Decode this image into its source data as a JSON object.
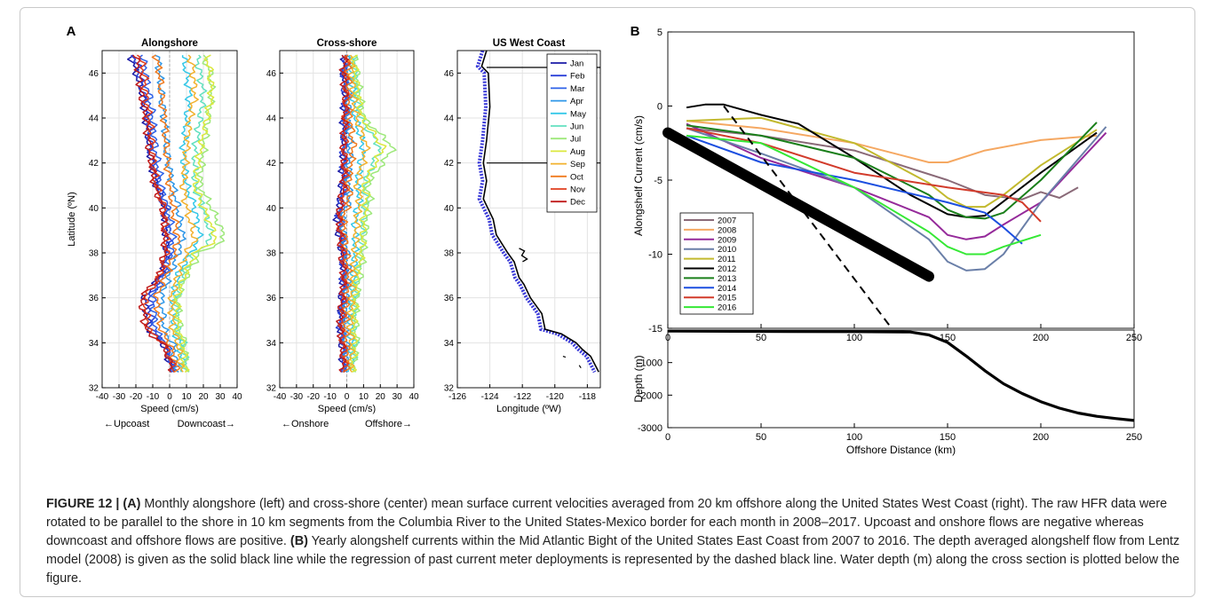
{
  "panel_a": {
    "letter": "A",
    "alongshore": {
      "title": "Alongshore",
      "xlabel": "Speed (cm/s)",
      "ylabel": "Latitude (ºN)",
      "left_note": "←Upcoast",
      "right_note": "Downcoast→",
      "xticks": [
        "-40",
        "-30",
        "-20",
        "-10",
        "0",
        "10",
        "20",
        "30",
        "40"
      ],
      "yticks": [
        "32",
        "34",
        "36",
        "38",
        "40",
        "42",
        "44",
        "46"
      ]
    },
    "crossshore": {
      "title": "Cross-shore",
      "xlabel": "Speed (cm/s)",
      "left_note": "←Onshore",
      "right_note": "Offshore→",
      "xticks": [
        "-40",
        "-30",
        "-20",
        "-10",
        "0",
        "10",
        "20",
        "30",
        "40"
      ],
      "yticks": [
        "32",
        "34",
        "36",
        "38",
        "40",
        "42",
        "44",
        "46"
      ]
    },
    "map": {
      "title": "US West Coast",
      "xlabel": "Longitude (ºW)",
      "xticks": [
        "-126",
        "-124",
        "-122",
        "-120",
        "-118"
      ],
      "yticks": [
        "32",
        "34",
        "36",
        "38",
        "40",
        "42",
        "44",
        "46"
      ]
    },
    "months": [
      "Jan",
      "Feb",
      "Mar",
      "Apr",
      "May",
      "Jun",
      "Jul",
      "Aug",
      "Sep",
      "Oct",
      "Nov",
      "Dec"
    ],
    "month_colors": [
      "#1a1aa6",
      "#2b40d8",
      "#2f62e8",
      "#2f97e8",
      "#35c8e8",
      "#63e0c0",
      "#9de87a",
      "#dbe83e",
      "#f2b12e",
      "#f07a1e",
      "#e03e1e",
      "#c01a1a"
    ]
  },
  "panel_b": {
    "letter": "B",
    "top_ylabel": "Alongshelf Current (cm/s)",
    "top_yticks": [
      "5",
      "0",
      "-5",
      "-10",
      "-15"
    ],
    "bottom_ylabel": "Depth (m)",
    "bottom_yticks": [
      "-1000",
      "-2000",
      "-3000"
    ],
    "xticks": [
      "0",
      "50",
      "100",
      "150",
      "200",
      "250"
    ],
    "xlabel": "Offshore Distance (km)"
  },
  "caption": {
    "fig_label": "FIGURE 12 |",
    "a_label": "(A)",
    "a_text": " Monthly alongshore (left) and cross-shore (center) mean surface current velocities averaged from 20 km offshore along the United States West Coast (right). The raw HFR data were rotated to be parallel to the shore in 10 km segments from the Columbia River to the United States-Mexico border for each month in 2008–2017. Upcoast and onshore flows are negative whereas downcoast and offshore flows are positive. ",
    "b_label": "(B)",
    "b_text": " Yearly alongshelf currents within the Mid Atlantic Bight of the United States East Coast from 2007 to 2016. The depth averaged alongshelf flow from Lentz model (2008) is given as the solid black line while the regression of past current meter deployments is represented by the dashed black line. Water depth (m) along the cross section is plotted below the figure."
  },
  "chart_data": [
    {
      "type": "line",
      "title": "Alongshore",
      "xlabel": "Speed (cm/s)",
      "ylabel": "Latitude (ºN)",
      "xlim": [
        -40,
        40
      ],
      "ylim": [
        32,
        47
      ],
      "note": "12 monthly profiles of mean alongshore speed vs latitude",
      "lat": [
        32.7,
        34,
        34.5,
        36,
        37,
        38,
        38.6,
        40,
        41,
        42.5,
        44,
        45,
        46,
        46.8
      ],
      "series": [
        {
          "name": "Jan",
          "values": [
            2,
            -4,
            -12,
            -15,
            -5,
            -2,
            -2,
            -3,
            -8,
            -12,
            -14,
            -16,
            -20,
            -23
          ]
        },
        {
          "name": "Feb",
          "values": [
            2,
            -3,
            -10,
            -12,
            -4,
            -1,
            -1,
            -3,
            -7,
            -11,
            -13,
            -15,
            -18,
            -21
          ]
        },
        {
          "name": "Mar",
          "values": [
            3,
            -2,
            -8,
            -10,
            -3,
            1,
            2,
            -1,
            -5,
            -8,
            -10,
            -12,
            -14,
            -16
          ]
        },
        {
          "name": "Apr",
          "values": [
            5,
            2,
            -3,
            -5,
            0,
            5,
            8,
            5,
            2,
            -2,
            -3,
            -5,
            -6,
            -7
          ]
        },
        {
          "name": "May",
          "values": [
            8,
            6,
            3,
            2,
            5,
            12,
            18,
            15,
            10,
            8,
            10,
            12,
            10,
            8
          ]
        },
        {
          "name": "Jun",
          "values": [
            10,
            8,
            5,
            4,
            8,
            15,
            25,
            20,
            15,
            15,
            18,
            20,
            18,
            16
          ]
        },
        {
          "name": "Jul",
          "values": [
            10,
            9,
            6,
            5,
            10,
            18,
            33,
            25,
            18,
            20,
            23,
            25,
            24,
            20
          ]
        },
        {
          "name": "Aug",
          "values": [
            9,
            8,
            5,
            4,
            9,
            15,
            28,
            20,
            15,
            18,
            22,
            25,
            24,
            22
          ]
        },
        {
          "name": "Sep",
          "values": [
            7,
            5,
            2,
            1,
            5,
            10,
            15,
            10,
            8,
            10,
            12,
            15,
            14,
            12
          ]
        },
        {
          "name": "Oct",
          "values": [
            5,
            0,
            -5,
            -8,
            -2,
            3,
            5,
            2,
            0,
            -2,
            -3,
            -5,
            -6,
            -8
          ]
        },
        {
          "name": "Nov",
          "values": [
            3,
            -3,
            -12,
            -15,
            -5,
            -2,
            -2,
            -3,
            -8,
            -10,
            -12,
            -14,
            -15,
            -18
          ]
        },
        {
          "name": "Dec",
          "values": [
            2,
            -4,
            -14,
            -17,
            -6,
            -3,
            -3,
            -4,
            -9,
            -12,
            -14,
            -17,
            -18,
            -20
          ]
        }
      ]
    },
    {
      "type": "line",
      "title": "Cross-shore",
      "xlabel": "Speed (cm/s)",
      "xlim": [
        -40,
        40
      ],
      "ylim": [
        32,
        47
      ],
      "note": "12 monthly profiles of mean cross-shore speed vs latitude",
      "lat": [
        32.7,
        34,
        34.5,
        36,
        37,
        38,
        39.5,
        40.5,
        41,
        42.7,
        44,
        45,
        46,
        46.8
      ],
      "series": [
        {
          "name": "Jan",
          "values": [
            -2,
            -3,
            -4,
            -3,
            -2,
            -3,
            -6,
            -4,
            -3,
            -2,
            -2,
            -1,
            -2,
            -1
          ]
        },
        {
          "name": "Feb",
          "values": [
            -2,
            -2,
            -4,
            -3,
            -2,
            -2,
            -5,
            -3,
            -2,
            -2,
            -1,
            -1,
            -2,
            -1
          ]
        },
        {
          "name": "Mar",
          "values": [
            -1,
            -2,
            -3,
            -2,
            -1,
            -2,
            -4,
            -2,
            -1,
            -1,
            -1,
            0,
            -1,
            0
          ]
        },
        {
          "name": "Apr",
          "values": [
            0,
            0,
            -1,
            0,
            1,
            0,
            -3,
            2,
            1,
            2,
            1,
            1,
            0,
            1
          ]
        },
        {
          "name": "May",
          "values": [
            2,
            3,
            2,
            3,
            4,
            5,
            5,
            8,
            6,
            10,
            5,
            4,
            3,
            2
          ]
        },
        {
          "name": "Jun",
          "values": [
            3,
            5,
            4,
            5,
            6,
            8,
            10,
            12,
            10,
            20,
            8,
            6,
            5,
            4
          ]
        },
        {
          "name": "Jul",
          "values": [
            4,
            6,
            5,
            6,
            8,
            10,
            12,
            14,
            12,
            28,
            10,
            8,
            6,
            5
          ]
        },
        {
          "name": "Aug",
          "values": [
            3,
            5,
            4,
            5,
            6,
            9,
            10,
            12,
            10,
            22,
            9,
            7,
            5,
            4
          ]
        },
        {
          "name": "Sep",
          "values": [
            2,
            3,
            2,
            3,
            4,
            5,
            6,
            8,
            6,
            12,
            6,
            4,
            3,
            3
          ]
        },
        {
          "name": "Oct",
          "values": [
            0,
            0,
            -1,
            0,
            1,
            0,
            -2,
            2,
            1,
            4,
            2,
            1,
            1,
            1
          ]
        },
        {
          "name": "Nov",
          "values": [
            -1,
            -2,
            -3,
            -2,
            -1,
            -2,
            -4,
            -2,
            -1,
            -1,
            -1,
            0,
            -1,
            0
          ]
        },
        {
          "name": "Dec",
          "values": [
            -2,
            -3,
            -4,
            -3,
            -2,
            -3,
            -5,
            -3,
            -2,
            -2,
            -1,
            -1,
            -2,
            -1
          ]
        }
      ]
    },
    {
      "type": "map",
      "title": "US West Coast",
      "xlabel": "Longitude (ºW)",
      "xlim": [
        -126,
        -117.2
      ],
      "ylim": [
        32,
        47
      ],
      "coastline": [
        [
          -124.2,
          47
        ],
        [
          -124.5,
          46.3
        ],
        [
          -124.1,
          46.0
        ],
        [
          -124.0,
          44.5
        ],
        [
          -124.2,
          43.0
        ],
        [
          -124.4,
          42.0
        ],
        [
          -124.2,
          41.2
        ],
        [
          -124.4,
          40.4
        ],
        [
          -123.8,
          39.5
        ],
        [
          -123.6,
          38.8
        ],
        [
          -122.9,
          38.0
        ],
        [
          -122.5,
          37.6
        ],
        [
          -122.2,
          36.9
        ],
        [
          -121.9,
          36.6
        ],
        [
          -121.5,
          36.0
        ],
        [
          -120.8,
          35.3
        ],
        [
          -120.6,
          34.6
        ],
        [
          -119.6,
          34.4
        ],
        [
          -118.7,
          34.0
        ],
        [
          -118.3,
          33.7
        ],
        [
          -117.8,
          33.4
        ],
        [
          -117.3,
          32.7
        ]
      ],
      "border_lat": [
        46.25,
        42.0
      ]
    },
    {
      "type": "line",
      "title": "",
      "xlabel": "Offshore Distance (km)",
      "ylabel": "Alongshelf Current (cm/s)",
      "xlim": [
        0,
        250
      ],
      "ylim": [
        -15,
        5
      ],
      "legend": "bottom-left",
      "series": [
        {
          "name": "2007",
          "color": "#8a6a78",
          "x": [
            10,
            50,
            100,
            150,
            170,
            190,
            200,
            210,
            220
          ],
          "values": [
            -1.5,
            -2,
            -3,
            -5,
            -6,
            -6.3,
            -5.8,
            -6.2,
            -5.5
          ]
        },
        {
          "name": "2008",
          "color": "#f5a862",
          "x": [
            10,
            50,
            100,
            140,
            150,
            170,
            200,
            230
          ],
          "values": [
            -1,
            -1.5,
            -2.5,
            -3.8,
            -3.8,
            -3,
            -2.3,
            -2
          ]
        },
        {
          "name": "2009",
          "color": "#952a9a",
          "x": [
            10,
            50,
            100,
            140,
            150,
            160,
            170,
            180,
            200,
            235
          ],
          "values": [
            -1.2,
            -3.5,
            -5.5,
            -7.5,
            -8.7,
            -9,
            -8.8,
            -8,
            -6.5,
            -1.8
          ]
        },
        {
          "name": "2010",
          "color": "#6a7fa8",
          "x": [
            10,
            50,
            100,
            140,
            150,
            160,
            170,
            180,
            200,
            235
          ],
          "values": [
            -1.5,
            -3.2,
            -5.5,
            -9,
            -10.5,
            -11.1,
            -11,
            -10,
            -6.5,
            -1.4
          ]
        },
        {
          "name": "2011",
          "color": "#c2b92e",
          "x": [
            10,
            50,
            100,
            140,
            150,
            160,
            170,
            180,
            200,
            230
          ],
          "values": [
            -1,
            -0.8,
            -2.5,
            -5.2,
            -6.2,
            -6.8,
            -6.8,
            -6,
            -4,
            -1.6
          ]
        },
        {
          "name": "2012",
          "color": "#000000",
          "x": [
            10,
            20,
            30,
            50,
            70,
            100,
            130,
            150,
            160,
            170,
            200,
            230
          ],
          "values": [
            -0.1,
            0.1,
            0.1,
            -0.6,
            -1.2,
            -3.5,
            -6,
            -7.3,
            -7.5,
            -7.4,
            -4.5,
            -1.8
          ]
        },
        {
          "name": "2013",
          "color": "#1a7f1a",
          "x": [
            10,
            50,
            100,
            140,
            150,
            160,
            170,
            180,
            200,
            230
          ],
          "values": [
            -1.3,
            -2,
            -3.5,
            -6,
            -7,
            -7.5,
            -7.6,
            -7.2,
            -5,
            -1.1
          ]
        },
        {
          "name": "2014",
          "color": "#1c4fe0",
          "x": [
            10,
            50,
            100,
            150,
            170,
            180,
            190
          ],
          "values": [
            -2,
            -3.8,
            -5,
            -6.5,
            -7.2,
            -8.2,
            -9.3
          ]
        },
        {
          "name": "2015",
          "color": "#d23b2b",
          "x": [
            10,
            50,
            100,
            150,
            180,
            190,
            200
          ],
          "values": [
            -1.5,
            -2.5,
            -4.5,
            -5.5,
            -6,
            -6.5,
            -7.8
          ]
        },
        {
          "name": "2016",
          "color": "#35e835",
          "x": [
            10,
            50,
            100,
            140,
            150,
            160,
            170,
            180,
            200
          ],
          "values": [
            -2,
            -2.5,
            -5.5,
            -8.5,
            -9.5,
            -10,
            -10,
            -9.5,
            -8.7
          ]
        }
      ],
      "lentz_model": {
        "x": [
          0,
          140
        ],
        "values": [
          -1.8,
          -11.5
        ]
      },
      "regression": {
        "x": [
          30,
          120
        ],
        "values": [
          0,
          -15
        ]
      }
    },
    {
      "type": "line",
      "title": "",
      "xlabel": "Offshore Distance (km)",
      "ylabel": "Depth (m)",
      "xlim": [
        0,
        250
      ],
      "ylim": [
        -3000,
        0
      ],
      "series": [
        {
          "name": "",
          "x": [
            0,
            50,
            100,
            130,
            140,
            150,
            160,
            170,
            180,
            190,
            200,
            210,
            220,
            230,
            240,
            250
          ],
          "values": [
            -30,
            -40,
            -50,
            -60,
            -150,
            -380,
            -800,
            -1250,
            -1650,
            -1950,
            -2200,
            -2400,
            -2550,
            -2650,
            -2720,
            -2780
          ]
        }
      ]
    }
  ]
}
